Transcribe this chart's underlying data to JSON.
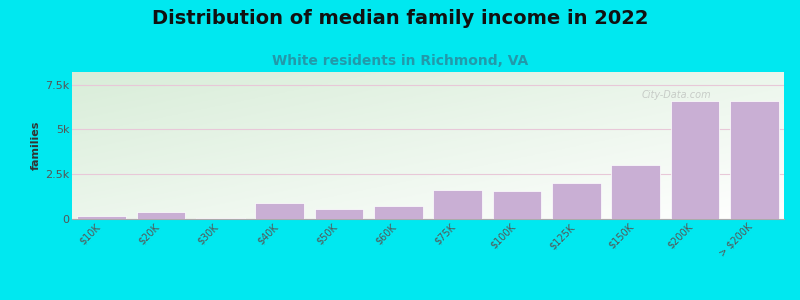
{
  "title": "Distribution of median family income in 2022",
  "subtitle": "White residents in Richmond, VA",
  "categories": [
    "$10K",
    "$20K",
    "$30K",
    "$40K",
    "$50K",
    "$60K",
    "$75K",
    "$100K",
    "$125K",
    "$150K",
    "$200K",
    "> $200K"
  ],
  "values": [
    150,
    400,
    80,
    900,
    550,
    750,
    1600,
    1550,
    2000,
    3000,
    6600,
    6600
  ],
  "bar_color": "#c9afd4",
  "bar_edge_color": "#ffffff",
  "ylabel": "families",
  "ylim": [
    0,
    8200
  ],
  "yticks": [
    0,
    2500,
    5000,
    7500
  ],
  "ytick_labels": [
    "0",
    "2.5k",
    "5k",
    "7.5k"
  ],
  "background_outer": "#00e8f0",
  "bg_top_color": "#d8eed8",
  "bg_bottom_color": "#f8f8f2",
  "title_fontsize": 14,
  "title_color": "#111111",
  "subtitle_fontsize": 10,
  "subtitle_color": "#2299aa",
  "watermark": "City-Data.com",
  "grid_color": "#e8c8d8",
  "grid_linewidth": 0.8,
  "xlabel_fontsize": 7,
  "ylabel_fontsize": 8
}
